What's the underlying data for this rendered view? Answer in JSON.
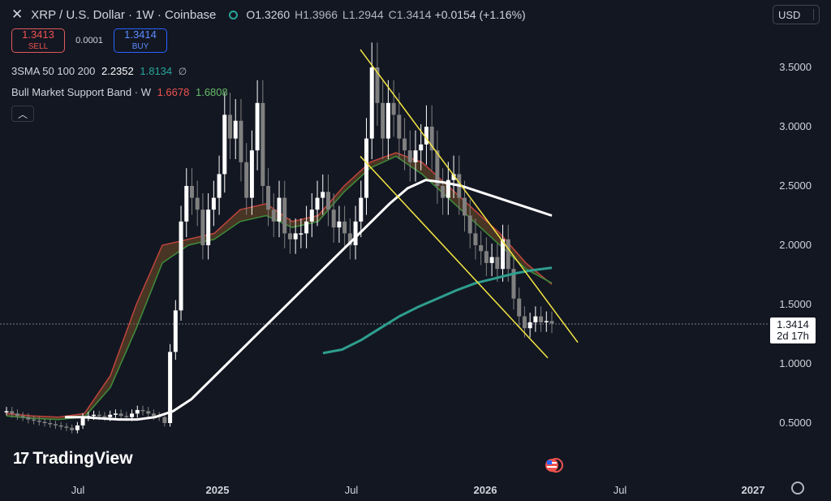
{
  "header": {
    "close_icon": "close-icon",
    "symbol_title": "XRP / U.S. Dollar · 1W · Coinbase",
    "status_icon": "market-status-icon",
    "open": "O1.3260",
    "high": "H1.3966",
    "low": "L1.2944",
    "close": "C1.3414",
    "change": "+0.0154 (+1.16%)"
  },
  "trade": {
    "sell_price": "1.3413",
    "sell_label": "SELL",
    "spread": "0.0001",
    "buy_price": "1.3414",
    "buy_label": "BUY"
  },
  "indicators": {
    "sma_name": "3SMA 50 100 200",
    "sma_v1": "2.2352",
    "sma_v2": "1.8134",
    "sma_extra": "∅",
    "bmsb_name": "Bull Market Support Band · W",
    "bmsb_v1": "1.6678",
    "bmsb_v2": "1.6808",
    "collapse_icon": "chevron-up-icon"
  },
  "currency": {
    "label": "USD"
  },
  "price_tag": {
    "value": "1.3414",
    "countdown": "2d 17h"
  },
  "brand": {
    "name": "TradingView"
  },
  "colors": {
    "background": "#131722",
    "up_candle": "#ffffff",
    "down_candle": "#808080",
    "trendline": "#f5e642",
    "sma_white": "#ffffff",
    "sma_teal": "#2e9e8e",
    "band_red": "#c0443c",
    "band_green": "#3e8e3a"
  },
  "chart_data": {
    "type": "candlestick",
    "y_axis_ticks": [
      "3.5000",
      "3.0000",
      "2.5000",
      "2.0000",
      "1.5000",
      "1.0000",
      "0.5000"
    ],
    "x_axis_labels": [
      "Jul",
      "2025",
      "Jul",
      "2026",
      "Jul",
      "2027"
    ],
    "ylim": [
      0.0,
      3.9
    ],
    "last_price": 1.3414,
    "candles_weekly_close_approx": [
      0.6,
      0.58,
      0.56,
      0.55,
      0.53,
      0.52,
      0.51,
      0.5,
      0.49,
      0.48,
      0.47,
      0.46,
      0.44,
      0.48,
      0.55,
      0.56,
      0.57,
      0.56,
      0.55,
      0.57,
      0.58,
      0.56,
      0.55,
      0.58,
      0.61,
      0.6,
      0.58,
      0.56,
      0.55,
      0.5,
      1.1,
      1.45,
      2.2,
      2.5,
      2.4,
      2.3,
      2.0,
      2.3,
      2.4,
      2.6,
      3.1,
      2.9,
      3.05,
      2.7,
      2.4,
      2.8,
      3.2,
      2.5,
      2.3,
      2.2,
      2.4,
      2.1,
      2.05,
      2.1,
      2.1,
      2.2,
      2.3,
      2.4,
      2.45,
      2.3,
      2.15,
      2.2,
      2.1,
      2.0,
      2.2,
      2.4,
      2.9,
      3.5,
      3.2,
      2.9,
      3.2,
      3.1,
      2.9,
      2.8,
      2.7,
      2.8,
      2.85,
      3.0,
      2.8,
      2.5,
      2.4,
      2.55,
      2.6,
      2.4,
      2.25,
      2.1,
      2.0,
      1.95,
      1.85,
      1.9,
      1.8,
      2.05,
      1.8,
      1.55,
      1.4,
      1.3,
      1.35,
      1.4,
      1.35,
      1.36,
      1.34
    ],
    "sma_white_approx": [
      0.55,
      0.55,
      0.54,
      0.53,
      0.53,
      0.55,
      0.6,
      0.7,
      0.85,
      1.0,
      1.15,
      1.3,
      1.45,
      1.6,
      1.75,
      1.9,
      2.05,
      2.2,
      2.35,
      2.48,
      2.55,
      2.53,
      2.5,
      2.45,
      2.4,
      2.35,
      2.3,
      2.25
    ],
    "sma_teal_approx": [
      1.09,
      1.12,
      1.2,
      1.3,
      1.4,
      1.48,
      1.55,
      1.62,
      1.68,
      1.72,
      1.76,
      1.79,
      1.81
    ],
    "band_red_approx": [
      0.58,
      0.56,
      0.55,
      0.58,
      0.9,
      1.5,
      2.0,
      2.05,
      2.1,
      2.3,
      2.35,
      2.2,
      2.25,
      2.5,
      2.7,
      2.78,
      2.7,
      2.5,
      2.3,
      2.1,
      1.85,
      1.67
    ],
    "band_green_approx": [
      0.56,
      0.54,
      0.53,
      0.55,
      0.8,
      1.3,
      1.85,
      2.0,
      2.05,
      2.2,
      2.25,
      2.15,
      2.2,
      2.45,
      2.65,
      2.75,
      2.6,
      2.4,
      2.2,
      2.0,
      1.8,
      1.68
    ],
    "trendlines": [
      {
        "from": 3.65,
        "to": 1.18,
        "label": ""
      },
      {
        "from": 2.75,
        "to": 1.05,
        "label": ""
      }
    ]
  }
}
